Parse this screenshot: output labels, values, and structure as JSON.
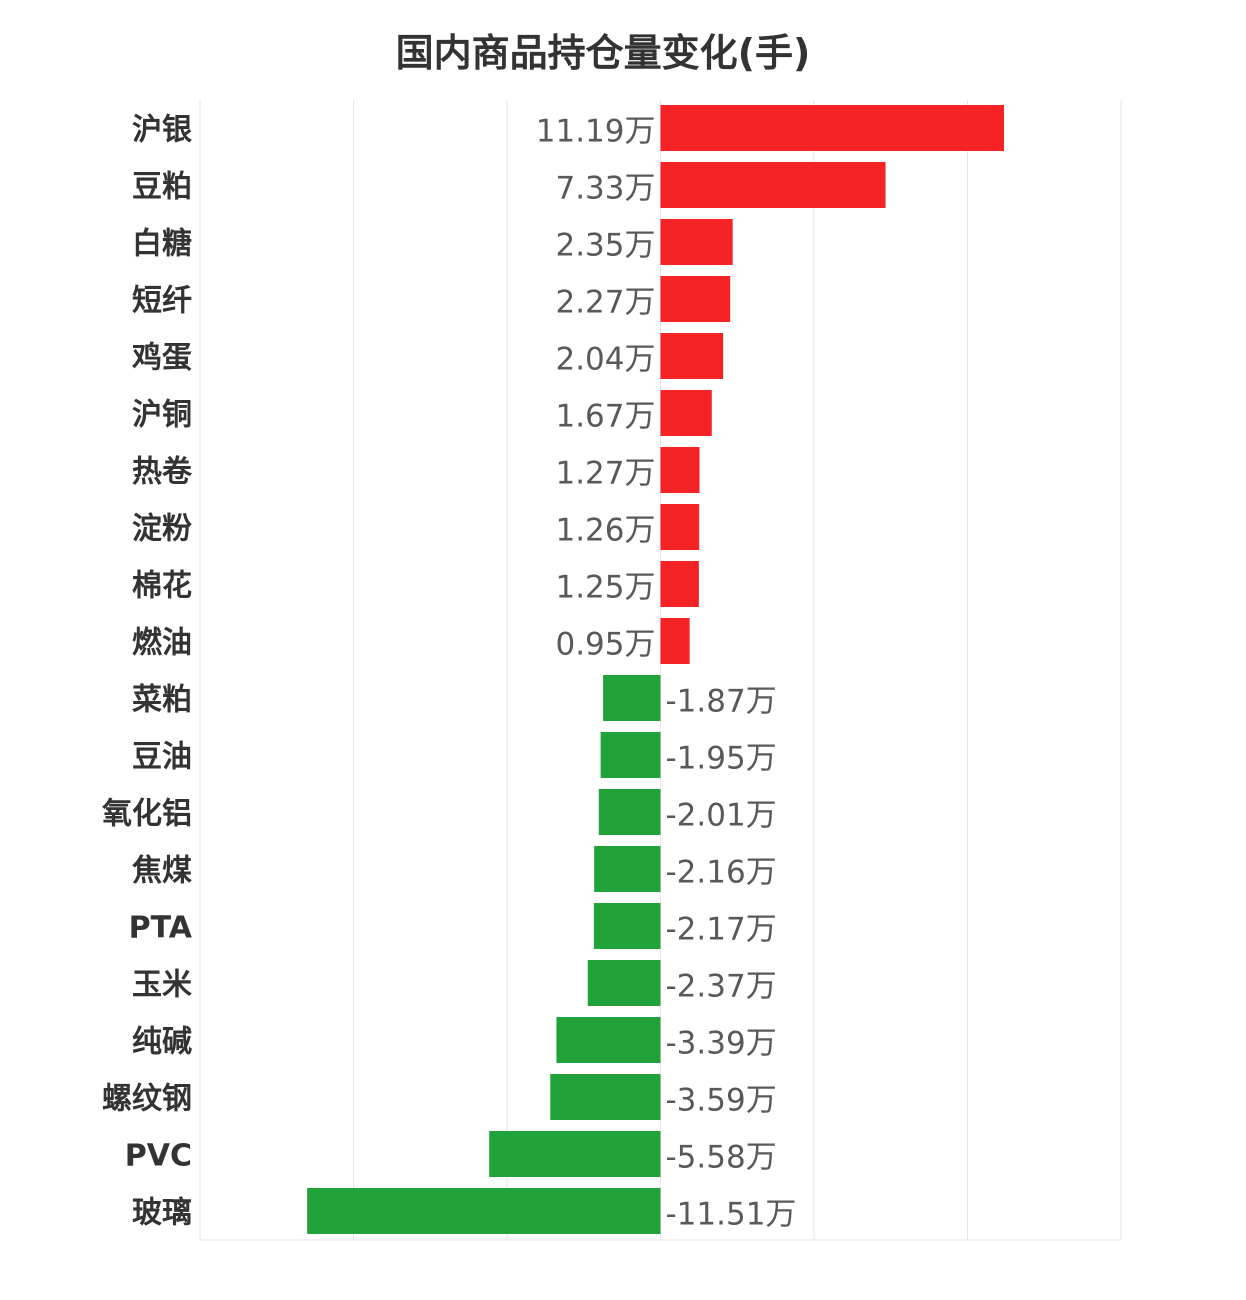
{
  "chart_data": {
    "type": "bar",
    "orientation": "horizontal",
    "title": "国内商品持仓量变化(手)",
    "unit_suffix": "万",
    "categories": [
      "沪银",
      "豆粕",
      "白糖",
      "短纤",
      "鸡蛋",
      "沪铜",
      "热卷",
      "淀粉",
      "棉花",
      "燃油",
      "菜粕",
      "豆油",
      "氧化铝",
      "焦煤",
      "PTA",
      "玉米",
      "纯碱",
      "螺纹钢",
      "PVC",
      "玻璃"
    ],
    "values": [
      11.19,
      7.33,
      2.35,
      2.27,
      2.04,
      1.67,
      1.27,
      1.26,
      1.25,
      0.95,
      -1.87,
      -1.95,
      -2.01,
      -2.16,
      -2.17,
      -2.37,
      -3.39,
      -3.59,
      -5.58,
      -11.51
    ],
    "xlim": [
      -15,
      15
    ],
    "grid": true,
    "colors": {
      "positive": "#f52325",
      "negative": "#21a33a",
      "label": "#595959",
      "category": "#333333",
      "grid": "#e6e6e6"
    }
  }
}
